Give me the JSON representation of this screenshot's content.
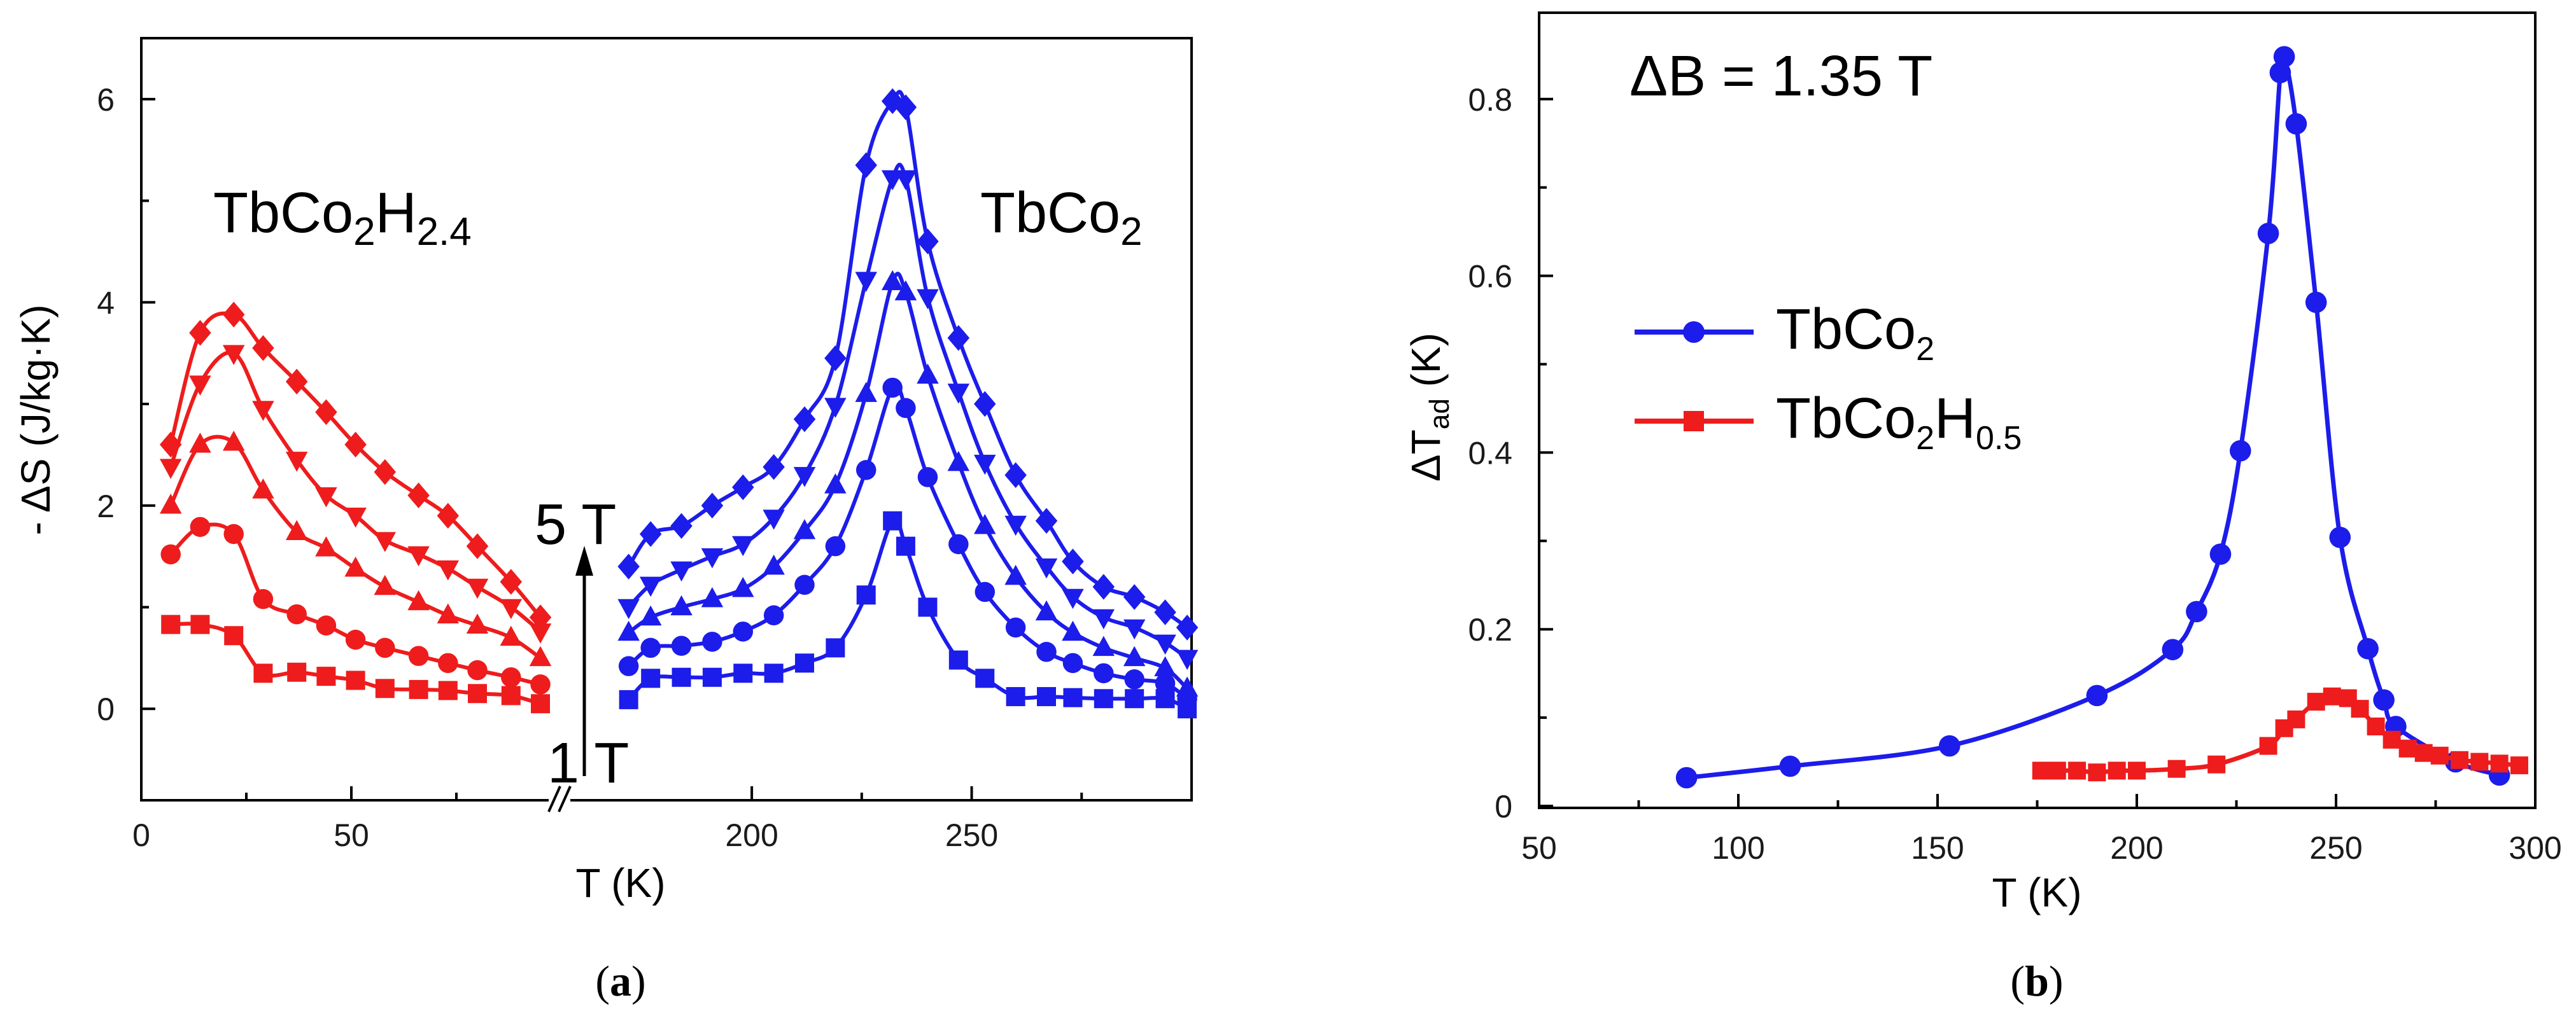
{
  "chart_data": [
    {
      "panel": "(a)",
      "panel_label": "a",
      "type": "line",
      "xlabel": "T (K)",
      "ylabel": "- ΔS (J/kg·K)",
      "xlim": [
        0,
        300
      ],
      "ylim": [
        -0.9,
        6.6
      ],
      "axis_break": [
        95,
        168
      ],
      "xticks": [
        0,
        50,
        200,
        250
      ],
      "yticks": [
        0,
        2,
        4,
        6
      ],
      "arrow": {
        "from_label": "1 T",
        "to_label": "5 T"
      },
      "annotations": [
        {
          "base": "TbCo",
          "sub1": "2",
          "mid": "H",
          "sub2": "2.4"
        },
        {
          "base": "TbCo",
          "sub1": "2",
          "mid": "",
          "sub2": ""
        }
      ],
      "series": [
        {
          "name": "TbCo2H2.4 1 T",
          "color": "#ee1c1c",
          "marker": "square",
          "x": [
            7,
            14,
            22,
            29,
            37,
            44,
            51,
            58,
            66,
            73,
            80,
            88,
            95
          ],
          "y": [
            0.83,
            0.83,
            0.72,
            0.35,
            0.36,
            0.32,
            0.28,
            0.2,
            0.19,
            0.18,
            0.15,
            0.13,
            0.05
          ]
        },
        {
          "name": "TbCo2H2.4 2 T",
          "color": "#ee1c1c",
          "marker": "circle",
          "x": [
            7,
            14,
            22,
            29,
            37,
            44,
            51,
            58,
            66,
            73,
            80,
            88,
            95
          ],
          "y": [
            1.52,
            1.79,
            1.72,
            1.08,
            0.93,
            0.82,
            0.68,
            0.6,
            0.52,
            0.45,
            0.38,
            0.31,
            0.24
          ]
        },
        {
          "name": "TbCo2H2.4 3 T",
          "color": "#ee1c1c",
          "marker": "triangle-up",
          "x": [
            7,
            14,
            22,
            29,
            37,
            44,
            51,
            58,
            66,
            73,
            80,
            88,
            95
          ],
          "y": [
            2.0,
            2.6,
            2.62,
            2.15,
            1.74,
            1.58,
            1.38,
            1.2,
            1.05,
            0.92,
            0.82,
            0.7,
            0.5
          ]
        },
        {
          "name": "TbCo2H2.4 4 T",
          "color": "#ee1c1c",
          "marker": "triangle-down",
          "x": [
            7,
            14,
            22,
            29,
            37,
            44,
            51,
            58,
            66,
            73,
            80,
            88,
            95
          ],
          "y": [
            2.38,
            3.2,
            3.5,
            2.95,
            2.45,
            2.1,
            1.9,
            1.66,
            1.52,
            1.38,
            1.2,
            1.0,
            0.76
          ]
        },
        {
          "name": "TbCo2H2.4 5 T",
          "color": "#ee1c1c",
          "marker": "diamond",
          "x": [
            7,
            14,
            22,
            29,
            37,
            44,
            51,
            58,
            66,
            73,
            80,
            88,
            95
          ],
          "y": [
            2.6,
            3.7,
            3.88,
            3.55,
            3.22,
            2.92,
            2.6,
            2.33,
            2.1,
            1.9,
            1.6,
            1.25,
            0.9
          ]
        },
        {
          "name": "TbCo2 1 T",
          "color": "#1c1ceb",
          "marker": "square",
          "x": [
            172,
            177,
            184,
            191,
            198,
            205,
            212,
            219,
            226,
            232,
            235,
            240,
            247,
            253,
            260,
            267,
            273,
            280,
            287,
            294,
            299
          ],
          "y": [
            0.09,
            0.3,
            0.31,
            0.31,
            0.35,
            0.35,
            0.45,
            0.6,
            1.12,
            1.85,
            1.6,
            1.0,
            0.48,
            0.3,
            0.12,
            0.12,
            0.11,
            0.1,
            0.1,
            0.1,
            0.0
          ]
        },
        {
          "name": "TbCo2 2 T",
          "color": "#1c1ceb",
          "marker": "circle",
          "x": [
            172,
            177,
            184,
            191,
            198,
            205,
            212,
            219,
            226,
            232,
            235,
            240,
            247,
            253,
            260,
            267,
            273,
            280,
            287,
            294,
            299
          ],
          "y": [
            0.42,
            0.6,
            0.62,
            0.66,
            0.76,
            0.92,
            1.22,
            1.6,
            2.35,
            3.16,
            2.96,
            2.28,
            1.62,
            1.15,
            0.8,
            0.56,
            0.45,
            0.35,
            0.29,
            0.25,
            0.1
          ]
        },
        {
          "name": "TbCo2 3 T",
          "color": "#1c1ceb",
          "marker": "triangle-up",
          "x": [
            172,
            177,
            184,
            191,
            198,
            205,
            212,
            219,
            226,
            232,
            235,
            240,
            247,
            253,
            260,
            267,
            273,
            280,
            287,
            294,
            299
          ],
          "y": [
            0.75,
            0.9,
            1.0,
            1.08,
            1.18,
            1.4,
            1.75,
            2.2,
            3.1,
            4.2,
            4.1,
            3.28,
            2.42,
            1.8,
            1.3,
            0.95,
            0.75,
            0.6,
            0.5,
            0.4,
            0.2
          ]
        },
        {
          "name": "TbCo2 4 T",
          "color": "#1c1ceb",
          "marker": "triangle-down",
          "x": [
            172,
            177,
            184,
            191,
            198,
            205,
            212,
            219,
            226,
            232,
            235,
            240,
            247,
            253,
            260,
            267,
            273,
            280,
            287,
            294,
            299
          ],
          "y": [
            1.0,
            1.22,
            1.37,
            1.5,
            1.62,
            1.88,
            2.3,
            2.98,
            4.22,
            5.22,
            5.22,
            4.05,
            3.12,
            2.42,
            1.82,
            1.4,
            1.1,
            0.9,
            0.8,
            0.65,
            0.5
          ]
        },
        {
          "name": "TbCo2 5 T",
          "color": "#1c1ceb",
          "marker": "diamond",
          "x": [
            172,
            177,
            184,
            191,
            198,
            205,
            212,
            219,
            226,
            232,
            235,
            240,
            247,
            253,
            260,
            267,
            273,
            280,
            287,
            294,
            299
          ],
          "y": [
            1.4,
            1.72,
            1.8,
            2.0,
            2.18,
            2.38,
            2.85,
            3.45,
            5.35,
            5.98,
            5.92,
            4.6,
            3.65,
            3.0,
            2.3,
            1.85,
            1.45,
            1.2,
            1.1,
            0.95,
            0.8
          ]
        }
      ]
    },
    {
      "panel": "(b)",
      "panel_label": "b",
      "type": "line",
      "xlabel": "T (K)",
      "ylabel": "ΔT",
      "ylabel_sub": "ad",
      "ylabel_unit": " (K)",
      "xlim": [
        50,
        300
      ],
      "ylim": [
        0,
        0.9
      ],
      "xticks": [
        50,
        100,
        150,
        200,
        250,
        300
      ],
      "yticks": [
        0,
        0.2,
        0.4,
        0.6,
        0.8
      ],
      "ytick_labels": [
        "0",
        "0.2",
        "0.4",
        "0.6",
        "0.8"
      ],
      "annotation": "ΔB = 1.35 T",
      "legend_position": "center-left",
      "series": [
        {
          "name": "TbCo2",
          "legend_base": "TbCo",
          "legend_sub1": "2",
          "legend_mid": "",
          "legend_sub2": "",
          "color": "#1c1ceb",
          "marker": "circle",
          "x": [
            87,
            113,
            153,
            190,
            209,
            215,
            221,
            226,
            233,
            236,
            237,
            240,
            245,
            251,
            258,
            262,
            265,
            280,
            291
          ],
          "y": [
            0.032,
            0.045,
            0.068,
            0.125,
            0.177,
            0.22,
            0.285,
            0.402,
            0.648,
            0.83,
            0.848,
            0.772,
            0.57,
            0.304,
            0.178,
            0.12,
            0.09,
            0.05,
            0.035
          ]
        },
        {
          "name": "TbCo2H0.5",
          "legend_base": "TbCo",
          "legend_sub1": "2",
          "legend_mid": "H",
          "legend_sub2": "0.5",
          "color": "#ee1c1c",
          "marker": "square",
          "x": [
            176,
            180,
            185,
            190,
            195,
            200,
            210,
            220,
            233,
            237,
            240,
            245,
            249,
            253,
            256,
            260,
            264,
            268,
            272,
            276,
            281,
            286,
            291,
            296
          ],
          "y": [
            0.04,
            0.04,
            0.04,
            0.038,
            0.04,
            0.04,
            0.042,
            0.047,
            0.068,
            0.088,
            0.098,
            0.118,
            0.124,
            0.122,
            0.11,
            0.09,
            0.075,
            0.065,
            0.06,
            0.057,
            0.052,
            0.05,
            0.048,
            0.046
          ]
        }
      ]
    }
  ]
}
